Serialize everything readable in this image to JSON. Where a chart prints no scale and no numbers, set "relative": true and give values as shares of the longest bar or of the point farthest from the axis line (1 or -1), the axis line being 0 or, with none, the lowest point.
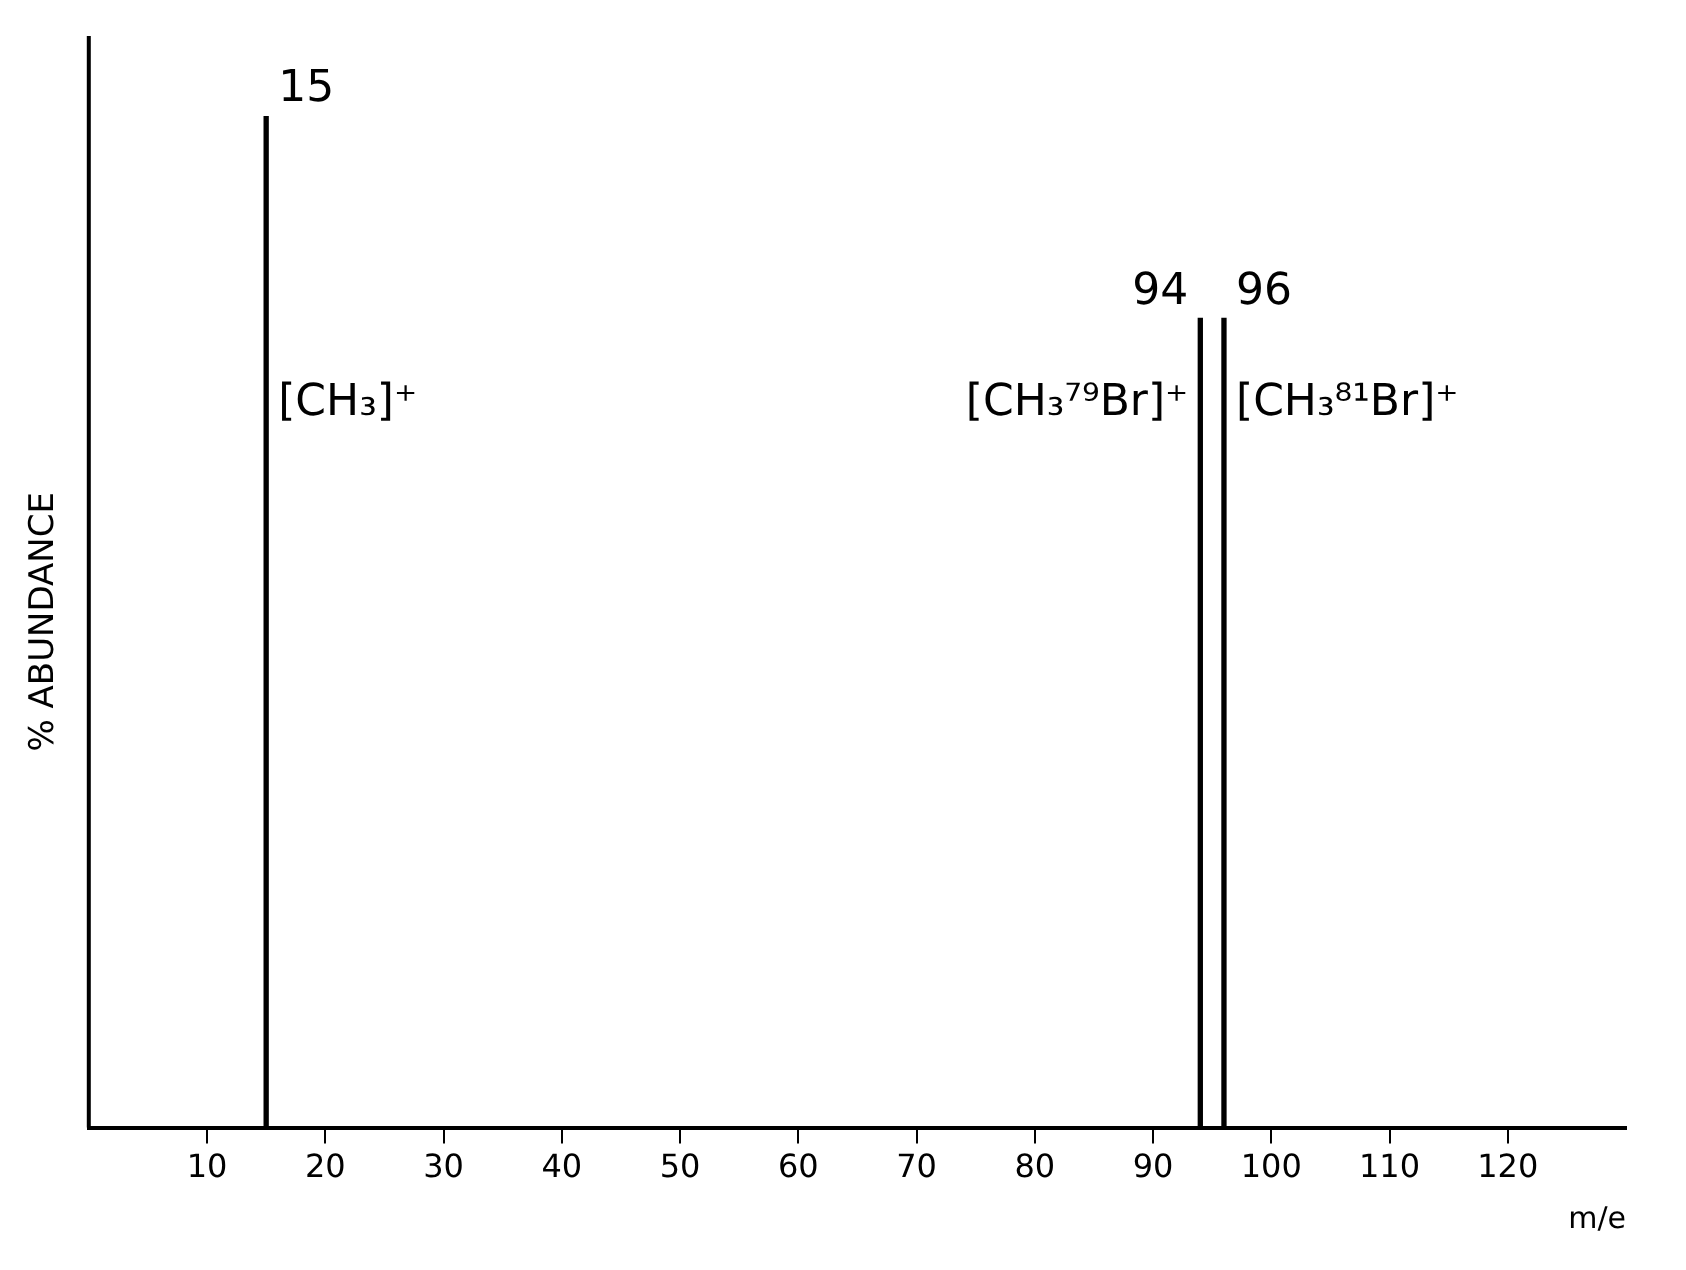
{
  "chart_data": {
    "type": "bar",
    "xlabel": "m/e",
    "ylabel": "% ABUNDANCE",
    "relative": true,
    "x": [
      15,
      94,
      96
    ],
    "values": [
      1,
      0.8,
      0.8
    ],
    "color": "#000000",
    "xlim": [
      0,
      130
    ],
    "xticks": [
      10,
      20,
      30,
      40,
      50,
      60,
      70,
      80,
      90,
      100,
      110,
      120
    ],
    "grid": false,
    "legend": false,
    "annotations": [
      {
        "text": "15",
        "x": 15,
        "y": 1
      },
      {
        "text": "94",
        "x": 94,
        "y": 0.8
      },
      {
        "text": "96",
        "x": 96,
        "y": 0.8
      },
      {
        "text": "[CH₃]⁺",
        "x": 15,
        "y": 0.69
      },
      {
        "text": "[CH₃⁷⁹Br]⁺",
        "x": 94,
        "y": 0.69
      },
      {
        "text": "[CH₃⁸¹Br]⁺",
        "x": 96,
        "y": 0.69
      }
    ]
  }
}
